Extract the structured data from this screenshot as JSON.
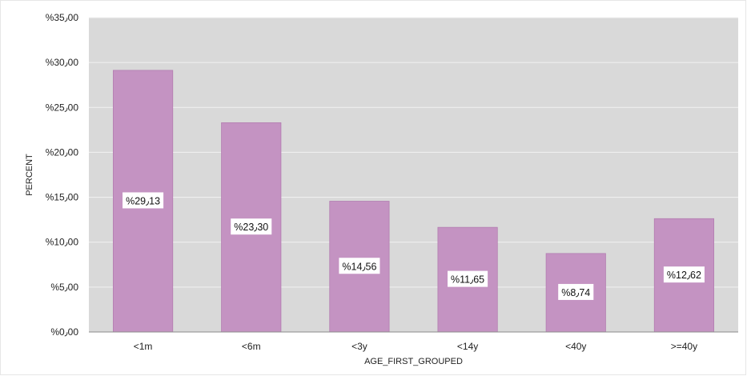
{
  "chart_data": {
    "type": "bar",
    "title": "",
    "xlabel": "AGE_FIRST_GROUPED",
    "ylabel": "PERCENT",
    "ylim": [
      0,
      35
    ],
    "yticks": [
      0,
      5,
      10,
      15,
      20,
      25,
      30,
      35
    ],
    "ytick_labels": [
      "%0٫00",
      "%5٫00",
      "%10٫00",
      "%15٫00",
      "%20٫00",
      "%25٫00",
      "%30٫00",
      "%35٫00"
    ],
    "categories": [
      "<1m",
      "<6m",
      "<3y",
      "<14y",
      "<40y",
      ">=40y"
    ],
    "values": [
      29.13,
      23.3,
      14.56,
      11.65,
      8.74,
      12.62
    ],
    "data_labels": [
      "%29٫13",
      "%23٫30",
      "%14٫56",
      "%11٫65",
      "%8٫74",
      "%12٫62"
    ],
    "grid": true,
    "legend": "none",
    "colors": {
      "bar": "#c493c2",
      "bar_edge": "#b37db1",
      "plot_bg": "#d9d9d9",
      "gridline": "#f2f2f2",
      "label_box": "#ffffff"
    }
  }
}
